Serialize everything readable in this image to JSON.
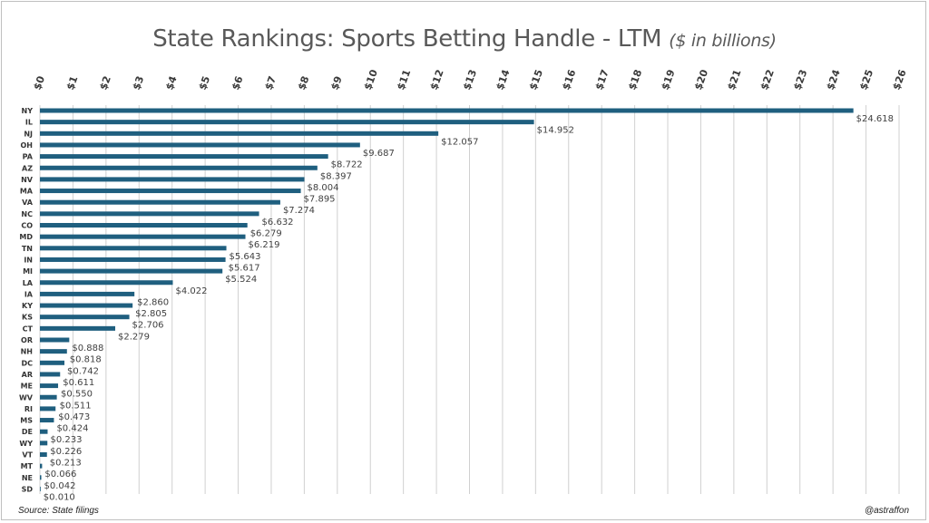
{
  "header": {
    "title": "State Rankings: Sports Betting Handle - LTM",
    "subtitle": "($ in billions)"
  },
  "footer": {
    "source": "Source: State filings",
    "handle": "@astraffon"
  },
  "colors": {
    "bar": "#1f5f7f",
    "grid": "#d0d0d0",
    "text": "#595959"
  },
  "chart_data": {
    "type": "bar",
    "orientation": "horizontal",
    "title": "State Rankings: Sports Betting Handle - LTM",
    "subtitle": "($ in billions)",
    "xlim": [
      0,
      26
    ],
    "x_axis_position": "top",
    "grid": true,
    "tick_values": [
      0,
      1,
      2,
      3,
      4,
      5,
      6,
      7,
      8,
      9,
      10,
      11,
      12,
      13,
      14,
      15,
      16,
      17,
      18,
      19,
      20,
      21,
      22,
      23,
      24,
      25,
      26
    ],
    "tick_labels": [
      "$0",
      "$1",
      "$2",
      "$3",
      "$4",
      "$5",
      "$6",
      "$7",
      "$8",
      "$9",
      "$10",
      "$11",
      "$12",
      "$13",
      "$14",
      "$15",
      "$16",
      "$17",
      "$18",
      "$19",
      "$20",
      "$21",
      "$22",
      "$23",
      "$24",
      "$25",
      "$26"
    ],
    "categories": [
      "NY",
      "IL",
      "NJ",
      "OH",
      "PA",
      "AZ",
      "NV",
      "MA",
      "VA",
      "NC",
      "CO",
      "MD",
      "TN",
      "IN",
      "MI",
      "LA",
      "IA",
      "KY",
      "KS",
      "CT",
      "OR",
      "NH",
      "DC",
      "AR",
      "ME",
      "WV",
      "RI",
      "MS",
      "DE",
      "WY",
      "VT",
      "MT",
      "NE",
      "SD"
    ],
    "values": [
      24.618,
      14.952,
      12.057,
      9.687,
      8.722,
      8.397,
      8.004,
      7.895,
      7.274,
      6.632,
      6.279,
      6.219,
      5.643,
      5.617,
      5.524,
      4.022,
      2.86,
      2.805,
      2.706,
      2.279,
      0.888,
      0.818,
      0.742,
      0.611,
      0.55,
      0.511,
      0.473,
      0.424,
      0.233,
      0.226,
      0.213,
      0.066,
      0.042,
      0.01
    ],
    "data_labels": [
      "$24.618",
      "$14.952",
      "$12.057",
      "$9.687",
      "$8.722",
      "$8.397",
      "$8.004",
      "$7.895",
      "$7.274",
      "$6.632",
      "$6.279",
      "$6.219",
      "$5.643",
      "$5.617",
      "$5.524",
      "$4.022",
      "$2.860",
      "$2.805",
      "$2.706",
      "$2.279",
      "$0.888",
      "$0.818",
      "$0.742",
      "$0.611",
      "$0.550",
      "$0.511",
      "$0.473",
      "$0.424",
      "$0.233",
      "$0.226",
      "$0.213",
      "$0.066",
      "$0.042",
      "$0.010"
    ]
  }
}
